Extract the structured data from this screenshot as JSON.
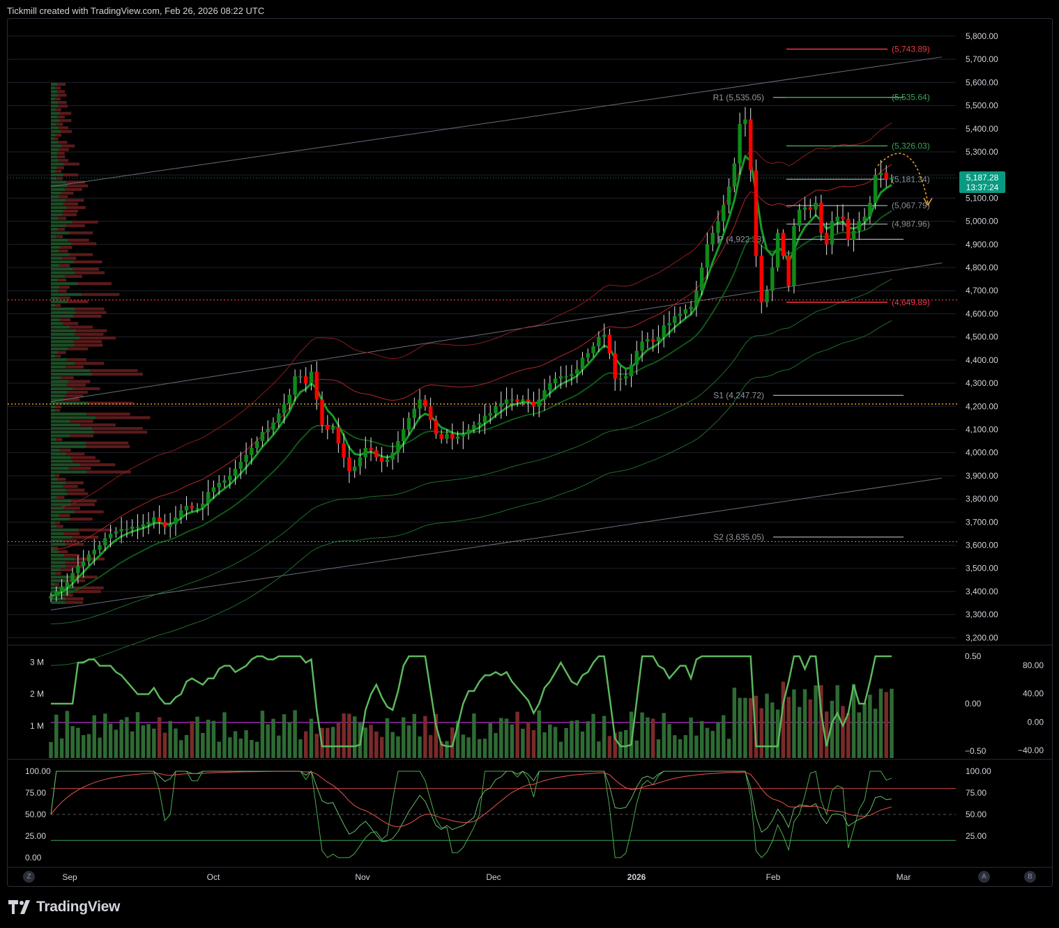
{
  "header": {
    "attribution": "Tickmill created with TradingView.com, Feb 26, 2026 08:22 UTC"
  },
  "footer": {
    "brand": "TradingView"
  },
  "corner_buttons": {
    "left": "Z",
    "right_a": "A",
    "right_b": "B"
  },
  "colors": {
    "bull": "#089981",
    "bear": "#f23645",
    "candle_up": "#0f8a1a",
    "candle_down": "#ff0000",
    "orange": "#ffa726",
    "purple": "#9c27b0",
    "grid": "#1e222d"
  },
  "price_tag": {
    "price": "5,187.28",
    "countdown": "13:37:24"
  },
  "chart_data": {
    "type": "line",
    "price_axis": {
      "ticks": [
        "5,800.00",
        "5,700.00",
        "5,600.00",
        "5,500.00",
        "5,400.00",
        "5,300.00",
        "5,200.00",
        "5,100.00",
        "5,000.00",
        "4,900.00",
        "4,800.00",
        "4,700.00",
        "4,600.00",
        "4,500.00",
        "4,400.00",
        "4,300.00",
        "4,200.00",
        "4,100.00",
        "4,000.00",
        "3,900.00",
        "3,800.00",
        "3,700.00",
        "3,600.00",
        "3,500.00",
        "3,400.00",
        "3,300.00",
        "3,200.00"
      ],
      "ylim": [
        3180,
        5860
      ]
    },
    "time_axis": {
      "labels": [
        "Sep",
        "Oct",
        "Nov",
        "Dec",
        "2026",
        "Feb",
        "Mar"
      ]
    },
    "pivot_levels": [
      {
        "label": "R1 (5,535.05)",
        "value": 5535.05
      },
      {
        "label": "P (4,922.38)",
        "value": 4922.38
      },
      {
        "label": "S1 (4,247.72)",
        "value": 4247.72
      },
      {
        "label": "S2 (3,635.05)",
        "value": 3635.05
      }
    ],
    "target_levels": [
      {
        "label": "(5,743.89)",
        "value": 5743.89,
        "color": "red"
      },
      {
        "label": "(5,535.64)",
        "value": 5535.64,
        "color": "green"
      },
      {
        "label": "(5,326.03)",
        "value": 5326.03,
        "color": "green"
      },
      {
        "label": "(5,181.34)",
        "value": 5181.34,
        "color": "gray"
      },
      {
        "label": "(5,067.79)",
        "value": 5067.79,
        "color": "gray"
      },
      {
        "label": "(4,987.96)",
        "value": 4987.96,
        "color": "gray"
      },
      {
        "label": "(4,649.89)",
        "value": 4649.89,
        "color": "red"
      }
    ],
    "close_series": [
      3380,
      3400,
      3420,
      3440,
      3480,
      3510,
      3530,
      3560,
      3580,
      3600,
      3630,
      3650,
      3660,
      3670,
      3670,
      3680,
      3680,
      3690,
      3700,
      3720,
      3700,
      3680,
      3690,
      3720,
      3750,
      3770,
      3760,
      3760,
      3780,
      3830,
      3850,
      3870,
      3880,
      3900,
      3930,
      3960,
      3990,
      4020,
      4050,
      4090,
      4100,
      4130,
      4170,
      4210,
      4250,
      4330,
      4330,
      4300,
      4350,
      4230,
      4120,
      4100,
      4110,
      4040,
      3980,
      3920,
      3940,
      3980,
      4020,
      4010,
      3980,
      3960,
      3970,
      4000,
      4050,
      4100,
      4150,
      4190,
      4230,
      4200,
      4140,
      4080,
      4060,
      4080,
      4060,
      4070,
      4080,
      4100,
      4120,
      4130,
      4160,
      4170,
      4200,
      4210,
      4230,
      4230,
      4220,
      4230,
      4220,
      4200,
      4230,
      4270,
      4300,
      4320,
      4330,
      4330,
      4340,
      4360,
      4410,
      4430,
      4460,
      4500,
      4510,
      4430,
      4320,
      4320,
      4330,
      4380,
      4440,
      4480,
      4490,
      4480,
      4500,
      4550,
      4560,
      4590,
      4600,
      4620,
      4630,
      4700,
      4800,
      4900,
      4950,
      5000,
      5070,
      5150,
      5250,
      5420,
      5440,
      5220,
      4850,
      4650,
      4700,
      4800,
      4950,
      4850,
      4720,
      4980,
      5050,
      5060,
      5050,
      5080,
      4950,
      4900,
      5000,
      5020,
      5010,
      4920,
      4960,
      5000,
      5020,
      5080,
      5200,
      5210,
      5180,
      5187
    ],
    "oscillator_axis_left": [
      "3 M",
      "2 M",
      "1 M"
    ],
    "oscillator_axis_right_a": [
      "0.50",
      "0.00",
      "−0.50"
    ],
    "oscillator_axis_right_b": [
      "80.00",
      "40.00",
      "0.00",
      "−40.00"
    ],
    "stoch_axis_left": [
      "100.00",
      "75.00",
      "50.00",
      "25.00",
      "0.00"
    ],
    "stoch_axis_right": [
      "100.00",
      "75.00",
      "50.00",
      "25.00"
    ]
  }
}
